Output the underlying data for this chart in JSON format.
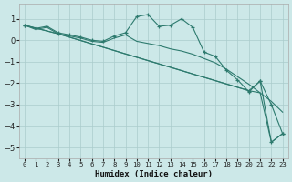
{
  "xlabel": "Humidex (Indice chaleur)",
  "bg_color": "#cce8e8",
  "grid_color": "#aacccc",
  "line_color": "#2d7a6e",
  "xlim": [
    -0.5,
    23.5
  ],
  "ylim": [
    -5.5,
    1.7
  ],
  "yticks": [
    1,
    0,
    -1,
    -2,
    -3,
    -4,
    -5
  ],
  "xticks": [
    0,
    1,
    2,
    3,
    4,
    5,
    6,
    7,
    8,
    9,
    10,
    11,
    12,
    13,
    14,
    15,
    16,
    17,
    18,
    19,
    20,
    21,
    22,
    23
  ],
  "series1_x": [
    0,
    1,
    2,
    3,
    4,
    5,
    6,
    7,
    8,
    9,
    10,
    11,
    12,
    13,
    14,
    15,
    16,
    17,
    18,
    19,
    20,
    21,
    22,
    23
  ],
  "series1_y": [
    0.7,
    0.55,
    0.65,
    0.35,
    0.25,
    0.15,
    0.0,
    -0.05,
    0.2,
    0.35,
    1.1,
    1.2,
    0.65,
    0.7,
    1.0,
    0.6,
    -0.55,
    -0.75,
    -1.4,
    -1.85,
    -2.4,
    -1.9,
    -3.0,
    -4.35
  ],
  "series2_x": [
    0,
    1,
    2,
    3,
    4,
    5,
    6,
    7,
    8,
    9,
    10,
    11,
    12,
    13,
    14,
    15,
    16,
    17,
    18,
    19,
    20,
    21,
    22,
    23
  ],
  "series2_y": [
    0.7,
    0.5,
    0.6,
    0.3,
    0.2,
    0.1,
    -0.05,
    -0.1,
    0.1,
    0.25,
    -0.05,
    -0.15,
    -0.25,
    -0.4,
    -0.5,
    -0.65,
    -0.85,
    -1.05,
    -1.35,
    -1.7,
    -2.05,
    -2.45,
    -2.85,
    -3.35
  ],
  "series3_x": [
    0,
    3,
    20,
    21,
    22,
    23
  ],
  "series3_y": [
    0.7,
    0.3,
    -2.35,
    -1.9,
    -4.75,
    -4.35
  ],
  "series4_x": [
    0,
    3,
    20,
    21,
    22,
    23
  ],
  "series4_y": [
    0.7,
    0.3,
    -2.35,
    -2.45,
    -4.75,
    -4.35
  ]
}
